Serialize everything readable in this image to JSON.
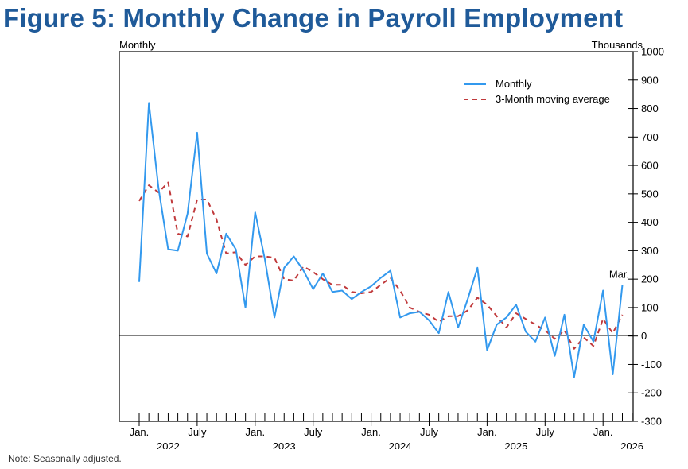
{
  "chart_data": {
    "type": "line",
    "title": "Figure 5: Monthly Change in Payroll Employment",
    "left_unit_label": "Monthly",
    "right_unit_label": "Thousands",
    "ylim": [
      -300,
      1000
    ],
    "y_ticks": [
      -300,
      -200,
      -100,
      0,
      100,
      200,
      300,
      400,
      500,
      600,
      700,
      800,
      900,
      1000
    ],
    "month_count": 52,
    "x_ticks": [
      {
        "index": 0,
        "month": "Jan.",
        "year": "2022"
      },
      {
        "index": 6,
        "month": "July",
        "year": ""
      },
      {
        "index": 12,
        "month": "Jan.",
        "year": "2023"
      },
      {
        "index": 18,
        "month": "July",
        "year": ""
      },
      {
        "index": 24,
        "month": "Jan.",
        "year": "2024"
      },
      {
        "index": 30,
        "month": "July",
        "year": ""
      },
      {
        "index": 36,
        "month": "Jan.",
        "year": "2025"
      },
      {
        "index": 42,
        "month": "July",
        "year": ""
      },
      {
        "index": 48,
        "month": "Jan.",
        "year": "2026"
      }
    ],
    "series": [
      {
        "name": "Monthly",
        "color": "#3399ee",
        "style": "solid",
        "start_index": 0,
        "values": [
          190,
          820,
          520,
          305,
          300,
          430,
          715,
          290,
          220,
          360,
          305,
          100,
          435,
          270,
          65,
          240,
          280,
          230,
          165,
          220,
          155,
          160,
          130,
          155,
          175,
          205,
          230,
          65,
          80,
          85,
          55,
          10,
          155,
          30,
          130,
          240,
          -50,
          40,
          65,
          110,
          15,
          -20,
          65,
          -70,
          75,
          -145,
          40,
          -20,
          160,
          -135,
          180
        ]
      },
      {
        "name": "3-Month moving average",
        "color": "#c0393b",
        "style": "dashed",
        "start_index": 0,
        "values": [
          475,
          530,
          505,
          540,
          360,
          350,
          480,
          480,
          410,
          290,
          295,
          250,
          280,
          280,
          275,
          200,
          195,
          245,
          225,
          200,
          180,
          180,
          155,
          150,
          155,
          180,
          205,
          160,
          100,
          85,
          75,
          50,
          70,
          70,
          90,
          135,
          110,
          70,
          30,
          80,
          60,
          40,
          20,
          -10,
          20,
          -45,
          -5,
          -35,
          60,
          10,
          75
        ]
      }
    ],
    "annotations": [
      {
        "text": "Mar.",
        "index": 50
      }
    ],
    "legend_position": "top-right",
    "zero_line": true
  },
  "note": "Note: Seasonally adjusted."
}
